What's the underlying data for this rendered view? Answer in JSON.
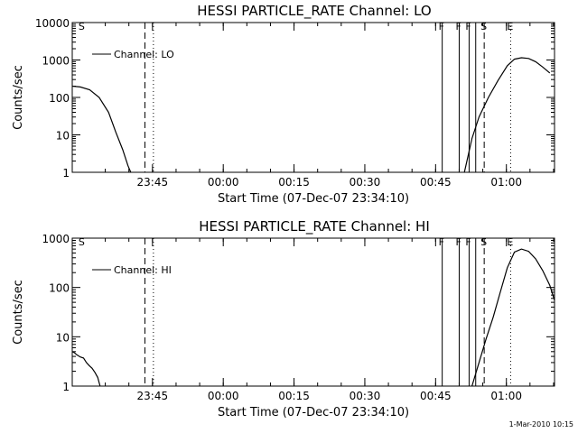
{
  "chart_data": [
    {
      "type": "line",
      "title": "HESSI PARTICLE_RATE Channel: LO",
      "xlabel": "Start Time (07-Dec-07 23:34:10)",
      "ylabel": "Counts/sec",
      "yscale": "log",
      "ylim": [
        1,
        10000
      ],
      "xlim_min": [
        -6.2,
        96
      ],
      "y_ticks": [
        "1",
        "10",
        "100",
        "1000",
        "10000"
      ],
      "x_ticks": [
        {
          "min": 10.8,
          "label": "23:45"
        },
        {
          "min": 25.8,
          "label": "00:00"
        },
        {
          "min": 40.8,
          "label": "00:15"
        },
        {
          "min": 55.8,
          "label": "00:30"
        },
        {
          "min": 70.8,
          "label": "00:45"
        },
        {
          "min": 85.8,
          "label": "01:00"
        }
      ],
      "legend": "Channel: LO",
      "legend_position": "upper-left",
      "series": [
        {
          "name": "Channel: LO",
          "segments": [
            {
              "x": [
                -6.2,
                -4.5,
                -2.5,
                -0.5,
                1.5,
                3,
                4.5,
                5.6,
                6.2
              ],
              "y": [
                200,
                190,
                160,
                100,
                40,
                12,
                4,
                1.5,
                1
              ]
            },
            {
              "x": [
                76.9,
                78.5,
                80,
                82,
                84,
                86,
                87.5,
                89,
                90.5,
                92,
                93.5,
                95
              ],
              "y": [
                1,
                8,
                30,
                100,
                280,
                700,
                1050,
                1150,
                1100,
                900,
                650,
                450
              ]
            }
          ]
        }
      ],
      "markers": [
        {
          "min": -4.5,
          "style": "letter",
          "label": "S"
        },
        {
          "min": 9.2,
          "style": "dashed",
          "label": ""
        },
        {
          "min": 11.0,
          "style": "dotted",
          "label": ""
        },
        {
          "min": 72.2,
          "style": "solid",
          "label": "F"
        },
        {
          "min": 75.8,
          "style": "solid",
          "label": "F"
        },
        {
          "min": 77.9,
          "style": "solid",
          "label": "F"
        },
        {
          "min": 79.3,
          "style": "solid",
          "label": ""
        },
        {
          "min": 81.1,
          "style": "dashed",
          "label": "S"
        },
        {
          "min": 86.7,
          "style": "dotted",
          "label": "E"
        },
        {
          "min": 96.0,
          "style": "dashdot",
          "label": ""
        }
      ]
    },
    {
      "type": "line",
      "title": "HESSI PARTICLE_RATE Channel: HI",
      "xlabel": "Start Time (07-Dec-07 23:34:10)",
      "ylabel": "Counts/sec",
      "yscale": "log",
      "ylim": [
        1,
        1000
      ],
      "xlim_min": [
        -6.2,
        96
      ],
      "y_ticks": [
        "1",
        "10",
        "100",
        "1000"
      ],
      "x_ticks": [
        {
          "min": 10.8,
          "label": "23:45"
        },
        {
          "min": 25.8,
          "label": "00:00"
        },
        {
          "min": 40.8,
          "label": "00:15"
        },
        {
          "min": 55.8,
          "label": "00:30"
        },
        {
          "min": 70.8,
          "label": "00:45"
        },
        {
          "min": 85.8,
          "label": "01:00"
        }
      ],
      "legend": "Channel: HI",
      "legend_position": "upper-left",
      "series": [
        {
          "name": "Channel: HI",
          "segments": [
            {
              "x": [
                -6.2,
                -5.8,
                -5.2,
                -4.5,
                -3.8,
                -3.2,
                -2.6,
                -2.0,
                -1.4,
                -0.8,
                -0.3
              ],
              "y": [
                5,
                4.8,
                4.3,
                3.9,
                3.7,
                3.0,
                2.6,
                2.3,
                1.9,
                1.5,
                1
              ]
            },
            {
              "x": [
                78.5,
                80,
                81.5,
                83,
                84.5,
                86,
                87.5,
                89,
                90.5,
                92,
                93.5,
                95,
                96
              ],
              "y": [
                1,
                3,
                9,
                25,
                80,
                250,
                520,
                600,
                540,
                380,
                220,
                110,
                55
              ]
            }
          ]
        }
      ],
      "markers": [
        {
          "min": -4.5,
          "style": "letter",
          "label": "S"
        },
        {
          "min": 9.2,
          "style": "dashed",
          "label": ""
        },
        {
          "min": 11.0,
          "style": "dotted",
          "label": ""
        },
        {
          "min": 72.2,
          "style": "solid",
          "label": "F"
        },
        {
          "min": 75.8,
          "style": "solid",
          "label": "F"
        },
        {
          "min": 77.9,
          "style": "solid",
          "label": "F"
        },
        {
          "min": 79.3,
          "style": "solid",
          "label": ""
        },
        {
          "min": 81.1,
          "style": "dashed",
          "label": "S"
        },
        {
          "min": 86.7,
          "style": "dotted",
          "label": "E"
        },
        {
          "min": 96.0,
          "style": "dashdot",
          "label": ""
        }
      ]
    }
  ],
  "footer": {
    "timestamp": "1-Mar-2010 10:15"
  }
}
